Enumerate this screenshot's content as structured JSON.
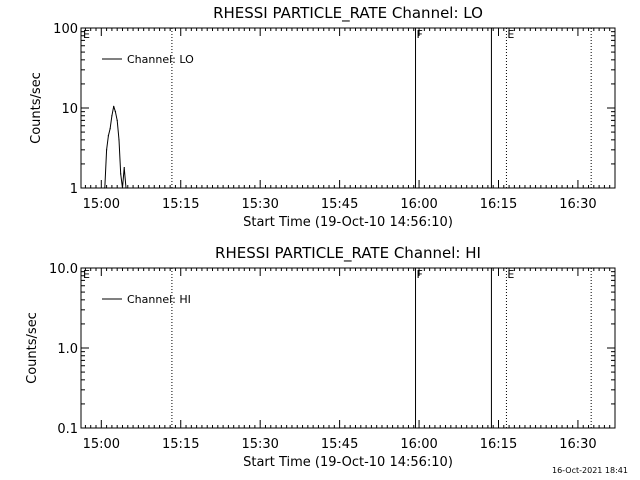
{
  "footer_timestamp": "16-Oct-2021 18:41",
  "chart_data": [
    {
      "type": "line",
      "title": "RHESSI PARTICLE_RATE Channel: LO",
      "xlabel": "Start Time (19-Oct-10 14:56:10)",
      "ylabel": "Counts/sec",
      "y_scale": "log",
      "ylim": [
        1,
        100
      ],
      "xlim": [
        "14:56:10",
        "16:37:00"
      ],
      "x_ticks": [
        "15:00",
        "15:15",
        "15:30",
        "15:45",
        "16:00",
        "16:15",
        "16:30"
      ],
      "y_ticks": [
        "1",
        "10",
        "100"
      ],
      "legend": "top-left",
      "series": [
        {
          "name": "Channel: LO",
          "x": [
            "15:00:40",
            "15:01:00",
            "15:01:20",
            "15:01:40",
            "15:02:00",
            "15:02:20",
            "15:02:40",
            "15:03:00",
            "15:03:20",
            "15:03:40",
            "15:04:00",
            "15:04:20",
            "15:04:40",
            "15:05:00"
          ],
          "y": [
            1,
            3,
            4.5,
            5.5,
            8,
            10.5,
            9,
            7,
            4,
            1.5,
            1,
            1.8,
            1,
            1
          ]
        }
      ],
      "markers": [
        {
          "time": "15:13:20",
          "label": "",
          "style": "dotted"
        },
        {
          "time": "15:59:20",
          "label": "F",
          "style": "solid"
        },
        {
          "time": "16:13:40",
          "label": "",
          "style": "solid"
        },
        {
          "time": "16:16:30",
          "label": "E",
          "style": "dotted"
        },
        {
          "time": "16:32:30",
          "label": "",
          "style": "dotted"
        }
      ],
      "edge_labels": [
        {
          "time": "14:56:10",
          "label": "E"
        }
      ]
    },
    {
      "type": "line",
      "title": "RHESSI PARTICLE_RATE Channel: HI",
      "xlabel": "Start Time (19-Oct-10 14:56:10)",
      "ylabel": "Counts/sec",
      "y_scale": "log",
      "ylim": [
        0.1,
        10.0
      ],
      "xlim": [
        "14:56:10",
        "16:37:00"
      ],
      "x_ticks": [
        "15:00",
        "15:15",
        "15:30",
        "15:45",
        "16:00",
        "16:15",
        "16:30"
      ],
      "y_ticks": [
        "0.1",
        "1.0",
        "10.0"
      ],
      "legend": "top-left",
      "series": [
        {
          "name": "Channel: HI",
          "x": [],
          "y": []
        }
      ],
      "markers": [
        {
          "time": "15:13:20",
          "label": "",
          "style": "dotted"
        },
        {
          "time": "15:59:20",
          "label": "F",
          "style": "solid"
        },
        {
          "time": "16:13:40",
          "label": "",
          "style": "solid"
        },
        {
          "time": "16:16:30",
          "label": "E",
          "style": "dotted"
        },
        {
          "time": "16:32:30",
          "label": "",
          "style": "dotted"
        }
      ],
      "edge_labels": [
        {
          "time": "14:56:10",
          "label": "E"
        }
      ]
    }
  ]
}
